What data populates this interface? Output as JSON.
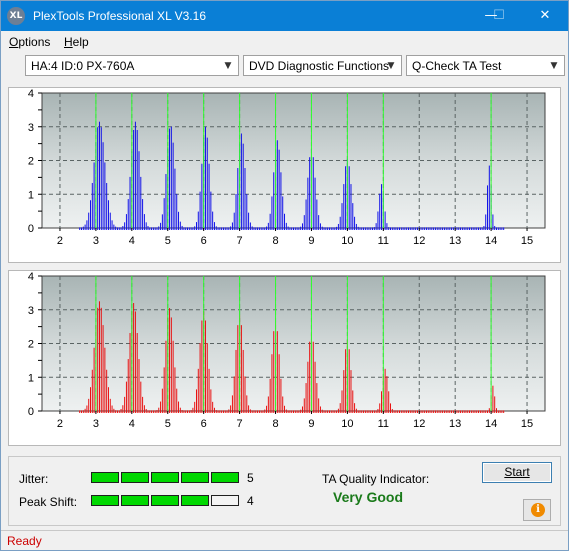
{
  "window": {
    "title": "PlexTools Professional XL V3.16",
    "icon_text": "XL"
  },
  "menu": [
    {
      "label": "Options",
      "underline": "O",
      "rest": "ptions"
    },
    {
      "label": "Help",
      "underline": "H",
      "rest": "elp"
    }
  ],
  "selectors": {
    "drive": "HA:4 ID:0  PX-760A",
    "function": "DVD Diagnostic Functions",
    "test": "Q-Check TA Test"
  },
  "chart_data": [
    {
      "type": "bar",
      "name": "",
      "color": "#1010e8",
      "x_ticks": [
        2,
        3,
        4,
        5,
        6,
        7,
        8,
        9,
        10,
        11,
        12,
        13,
        14,
        15
      ],
      "y_ticks": [
        0,
        0.5,
        1,
        1.5,
        2,
        2.5,
        3,
        3.5,
        4
      ],
      "xlim": [
        1.5,
        15.5
      ],
      "ylim": [
        0,
        4
      ],
      "marker_lines": [
        3,
        4,
        5,
        6,
        7,
        8,
        9,
        10,
        11,
        14
      ],
      "peaks": [
        {
          "center": 3.1,
          "height": 3.15,
          "width": 0.32
        },
        {
          "center": 4.1,
          "height": 3.15,
          "width": 0.26
        },
        {
          "center": 5.08,
          "height": 3.05,
          "width": 0.24
        },
        {
          "center": 6.05,
          "height": 3.0,
          "width": 0.22
        },
        {
          "center": 7.05,
          "height": 2.8,
          "width": 0.22
        },
        {
          "center": 8.05,
          "height": 2.6,
          "width": 0.22
        },
        {
          "center": 9.0,
          "height": 2.35,
          "width": 0.22
        },
        {
          "center": 10.0,
          "height": 2.05,
          "width": 0.22
        },
        {
          "center": 10.95,
          "height": 1.3,
          "width": 0.15
        },
        {
          "center": 13.95,
          "height": 1.85,
          "width": 0.12
        }
      ]
    },
    {
      "type": "bar",
      "name": "",
      "color": "#e81010",
      "x_ticks": [
        2,
        3,
        4,
        5,
        6,
        7,
        8,
        9,
        10,
        11,
        12,
        13,
        14,
        15
      ],
      "y_ticks": [
        0,
        0.5,
        1,
        1.5,
        2,
        2.5,
        3,
        3.5,
        4
      ],
      "xlim": [
        1.5,
        15.5
      ],
      "ylim": [
        0,
        4
      ],
      "marker_lines": [
        3,
        4,
        5,
        6,
        7,
        8,
        9,
        10,
        11,
        14
      ],
      "peaks": [
        {
          "center": 3.1,
          "height": 3.25,
          "width": 0.3
        },
        {
          "center": 4.05,
          "height": 3.2,
          "width": 0.26
        },
        {
          "center": 5.05,
          "height": 3.05,
          "width": 0.24
        },
        {
          "center": 6.0,
          "height": 2.95,
          "width": 0.24
        },
        {
          "center": 7.0,
          "height": 2.85,
          "width": 0.22
        },
        {
          "center": 8.0,
          "height": 2.65,
          "width": 0.22
        },
        {
          "center": 9.0,
          "height": 2.3,
          "width": 0.22
        },
        {
          "center": 10.0,
          "height": 2.1,
          "width": 0.2
        },
        {
          "center": 11.05,
          "height": 1.25,
          "width": 0.17
        },
        {
          "center": 14.05,
          "height": 0.75,
          "width": 0.1
        }
      ]
    }
  ],
  "quality": {
    "jitter_label": "Jitter:",
    "jitter_value": "5",
    "jitter_level": 5,
    "peak_label": "Peak Shift:",
    "peak_value": "4",
    "peak_level": 4,
    "max_level": 5,
    "ta_label": "TA Quality Indicator:",
    "ta_value": "Very Good",
    "ta_color": "#1a7a1a",
    "start_label": "Start",
    "meter_on_color": "#00d800",
    "info_icon": "info-icon"
  },
  "status": {
    "text": "Ready"
  }
}
